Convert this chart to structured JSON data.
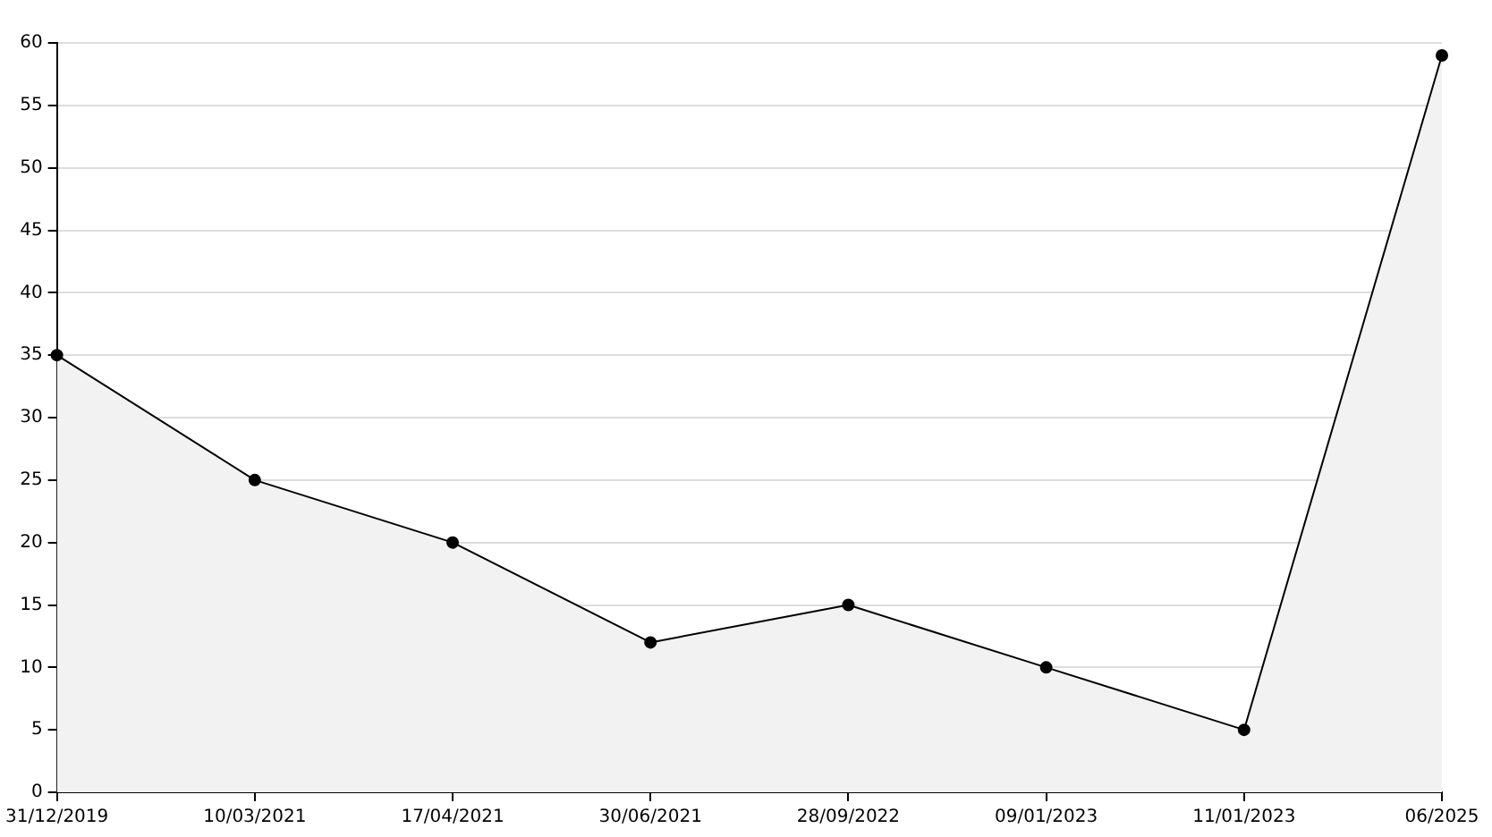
{
  "chart_data": {
    "type": "area",
    "categories": [
      "31/12/2019",
      "10/03/2021",
      "17/04/2021",
      "30/06/2021",
      "28/09/2022",
      "09/01/2023",
      "11/01/2023",
      "06/2025"
    ],
    "series": [
      {
        "color": "#000000",
        "values": [
          35,
          25,
          20,
          12,
          15,
          10,
          5,
          59
        ]
      }
    ],
    "ylim": [
      0,
      60
    ],
    "yticks": [
      0,
      5,
      10,
      15,
      20,
      25,
      30,
      35,
      40,
      45,
      50,
      55,
      60
    ],
    "grid": "y",
    "marker": "circle",
    "line_style": "solid"
  }
}
